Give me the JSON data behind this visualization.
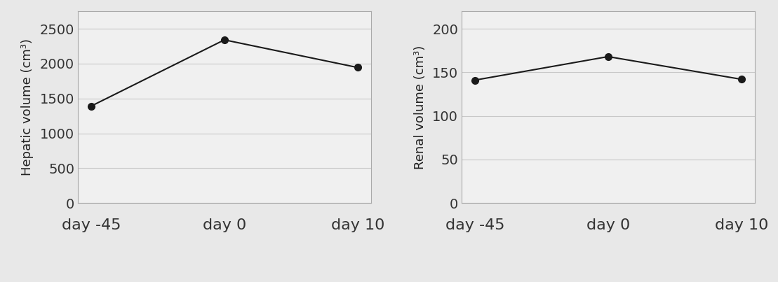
{
  "days": [
    "day -45",
    "day 0",
    "day 10"
  ],
  "liver_values": [
    1390,
    2340,
    1944
  ],
  "kidney_values": [
    141,
    168,
    142
  ],
  "liver_ylabel": "Hepatic volume (cm³)",
  "kidney_ylabel": "Renal volume (cm³)",
  "liver_ylim": [
    0,
    2750
  ],
  "kidney_ylim": [
    0,
    220
  ],
  "liver_yticks": [
    0,
    500,
    1000,
    1500,
    2000,
    2500
  ],
  "kidney_yticks": [
    0,
    50,
    100,
    150,
    200
  ],
  "line_color": "#1a1a1a",
  "marker_color": "#1a1a1a",
  "marker_size": 7,
  "line_width": 1.5,
  "figure_facecolor": "#e8e8e8",
  "axes_facecolor": "#f0f0f0",
  "grid_color": "#c8c8c8",
  "spine_color": "#aaaaaa",
  "tick_label_fontsize": 14,
  "axis_label_fontsize": 13,
  "xtick_label_fontsize": 16
}
